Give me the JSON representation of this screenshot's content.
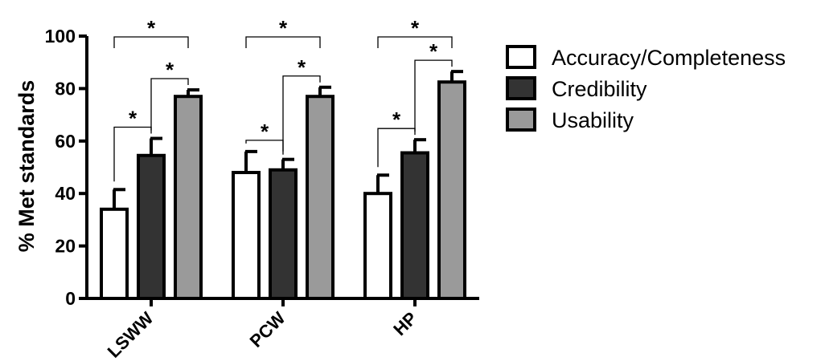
{
  "chart_data": {
    "type": "bar",
    "ylabel": "% Met standards",
    "xlabel": "",
    "ylim": [
      0,
      100
    ],
    "yticks": [
      0,
      20,
      40,
      60,
      80,
      100
    ],
    "categories": [
      "LSWW",
      "PCW",
      "HP"
    ],
    "series": [
      {
        "name": "Accuracy/Completeness",
        "color": "#ffffff",
        "values": [
          34,
          48,
          40
        ],
        "errors": [
          7.5,
          8,
          7
        ]
      },
      {
        "name": "Credibility",
        "color": "#333333",
        "values": [
          54.5,
          49,
          55.5
        ],
        "errors": [
          6.5,
          4,
          5
        ]
      },
      {
        "name": "Usability",
        "color": "#9a9a9a",
        "values": [
          77,
          77,
          82.5
        ],
        "errors": [
          2.5,
          3.5,
          4
        ]
      }
    ],
    "significance_marker": "*",
    "significance_comparisons": [
      {
        "category": "LSWW",
        "between": [
          "Accuracy/Completeness",
          "Usability"
        ],
        "label": "*"
      },
      {
        "category": "LSWW",
        "between": [
          "Accuracy/Completeness",
          "Credibility"
        ],
        "label": "*"
      },
      {
        "category": "LSWW",
        "between": [
          "Credibility",
          "Usability"
        ],
        "label": "*"
      },
      {
        "category": "PCW",
        "between": [
          "Accuracy/Completeness",
          "Usability"
        ],
        "label": "*"
      },
      {
        "category": "PCW",
        "between": [
          "Accuracy/Completeness",
          "Credibility"
        ],
        "label": "*"
      },
      {
        "category": "PCW",
        "between": [
          "Credibility",
          "Usability"
        ],
        "label": "*"
      },
      {
        "category": "HP",
        "between": [
          "Accuracy/Completeness",
          "Usability"
        ],
        "label": "*"
      },
      {
        "category": "HP",
        "between": [
          "Accuracy/Completeness",
          "Credibility"
        ],
        "label": "*"
      },
      {
        "category": "HP",
        "between": [
          "Credibility",
          "Usability"
        ],
        "label": "*"
      }
    ],
    "legend_position": "top-right",
    "grid": false
  }
}
